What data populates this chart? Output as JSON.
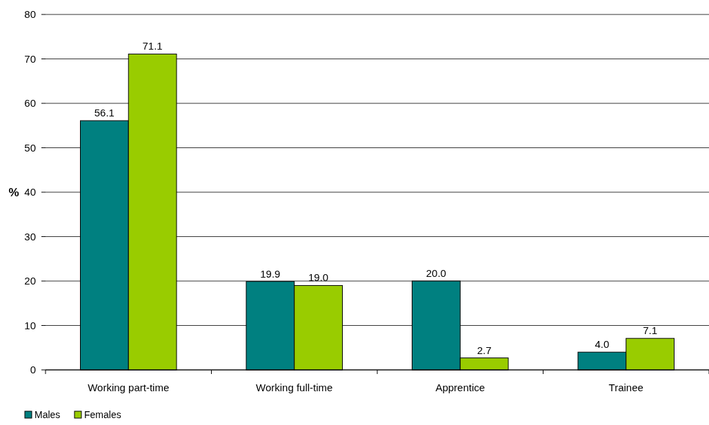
{
  "chart_data": {
    "type": "bar",
    "ylabel": "%",
    "categories": [
      "Working part-time",
      "Working full-time",
      "Apprentice",
      "Trainee"
    ],
    "series": [
      {
        "name": "Males",
        "color": "#008080",
        "values": [
          56.1,
          19.9,
          20.0,
          4.0
        ],
        "value_labels": [
          "56.1",
          "19.9",
          "20.0",
          "4.0"
        ]
      },
      {
        "name": "Females",
        "color": "#99cc00",
        "values": [
          71.1,
          19.0,
          2.7,
          7.1
        ],
        "value_labels": [
          "71.1",
          "19.0",
          "2.7",
          "7.1"
        ]
      }
    ],
    "ylim": [
      0,
      80
    ],
    "yticks": [
      0,
      10,
      20,
      30,
      40,
      50,
      60,
      70,
      80
    ],
    "grid": "y",
    "legend": "bottom left"
  }
}
